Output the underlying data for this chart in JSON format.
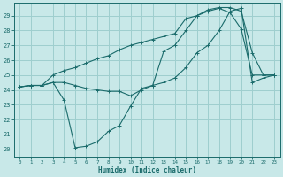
{
  "xlabel": "Humidex (Indice chaleur)",
  "bg_color": "#c8e8e8",
  "grid_color": "#9ecece",
  "line_color": "#1a6b6b",
  "xlim": [
    -0.5,
    23.5
  ],
  "ylim": [
    19.5,
    29.85
  ],
  "xticks": [
    0,
    1,
    2,
    3,
    4,
    5,
    6,
    7,
    8,
    9,
    10,
    11,
    12,
    13,
    14,
    15,
    16,
    17,
    18,
    19,
    20,
    21,
    22,
    23
  ],
  "yticks": [
    20,
    21,
    22,
    23,
    24,
    25,
    26,
    27,
    28,
    29
  ],
  "line1_x": [
    0,
    1,
    2,
    3,
    4,
    5,
    6,
    7,
    8,
    9,
    10,
    11,
    12,
    13,
    14,
    15,
    16,
    17,
    18,
    19,
    20,
    21,
    22,
    23
  ],
  "line1_y": [
    24.2,
    24.3,
    24.3,
    24.5,
    23.3,
    20.1,
    20.2,
    20.5,
    21.2,
    21.6,
    22.9,
    24.1,
    24.3,
    26.6,
    27.0,
    28.0,
    29.0,
    29.3,
    29.5,
    29.2,
    28.1,
    25.0,
    25.0,
    25.0
  ],
  "line2_x": [
    0,
    1,
    2,
    3,
    4,
    5,
    6,
    7,
    8,
    9,
    10,
    11,
    12,
    13,
    14,
    15,
    16,
    17,
    18,
    19,
    20,
    21,
    22,
    23
  ],
  "line2_y": [
    24.2,
    24.3,
    24.3,
    24.5,
    24.5,
    24.3,
    24.1,
    24.0,
    23.9,
    23.9,
    23.6,
    24.0,
    24.3,
    24.5,
    24.8,
    25.5,
    26.5,
    27.0,
    28.0,
    29.3,
    29.5,
    24.5,
    24.8,
    25.0
  ],
  "line3_x": [
    0,
    1,
    2,
    3,
    4,
    5,
    6,
    7,
    8,
    9,
    10,
    11,
    12,
    13,
    14,
    15,
    16,
    17,
    18,
    19,
    20,
    21,
    22,
    23
  ],
  "line3_y": [
    24.2,
    24.3,
    24.3,
    25.0,
    25.3,
    25.5,
    25.8,
    26.1,
    26.3,
    26.7,
    27.0,
    27.2,
    27.4,
    27.6,
    27.8,
    28.8,
    29.0,
    29.4,
    29.55,
    29.55,
    29.3,
    26.5,
    25.0,
    25.0
  ]
}
